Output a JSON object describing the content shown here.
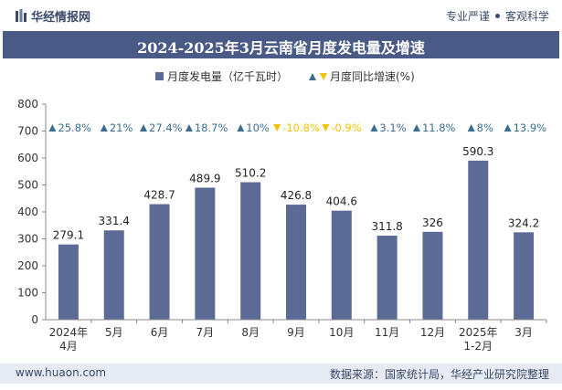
{
  "brand": {
    "name": "华经情报网"
  },
  "tagline": {
    "a": "专业严谨",
    "b": "客观科学"
  },
  "footer": {
    "website": "www.huaon.com",
    "source": "数据来源：国家统计局，华经产业研究院整理"
  },
  "colors": {
    "bar": "#5c6b96",
    "up": "#3a6d8f",
    "down": "#f2c200",
    "header": "#4a5a86"
  },
  "chart_data": {
    "type": "bar",
    "title": "2024-2025年3月云南省月度发电量及增速",
    "categories": [
      "2024年\n4月",
      "5月",
      "6月",
      "7月",
      "8月",
      "9月",
      "10月",
      "11月",
      "12月",
      "2025年\n1-2月",
      "3月"
    ],
    "series": [
      {
        "name": "月度发电量（亿千瓦时）",
        "values": [
          279.1,
          331.4,
          428.7,
          489.9,
          510.2,
          426.8,
          404.6,
          311.8,
          326,
          590.3,
          324.2
        ]
      },
      {
        "name": "月度同比增速(%)",
        "values": [
          25.8,
          21,
          27.4,
          18.7,
          10,
          -10.8,
          -0.9,
          3.1,
          11.8,
          8,
          13.9
        ]
      }
    ],
    "growth_labels": [
      "25.8%",
      "21%",
      "27.4%",
      "18.7%",
      "10%",
      "-10.8%",
      "-0.9%",
      "3.1%",
      "11.8%",
      "8%",
      "13.9%"
    ],
    "value_labels": [
      "279.1",
      "331.4",
      "428.7",
      "489.9",
      "510.2",
      "426.8",
      "404.6",
      "311.8",
      "326",
      "590.3",
      "324.2"
    ],
    "ylim": [
      0,
      800
    ],
    "yticks": [
      0,
      100,
      200,
      300,
      400,
      500,
      600,
      700,
      800
    ],
    "legend_position": "top-center",
    "grid": false
  }
}
